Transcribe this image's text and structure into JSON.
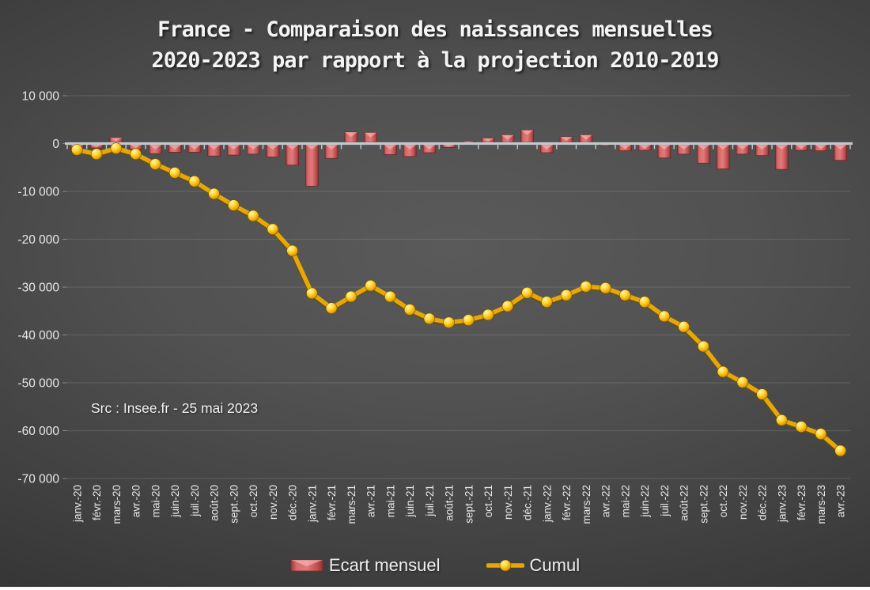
{
  "title": {
    "line1": "France - Comparaison des naissances mensuelles",
    "line2": "2020-2023 par rapport à la projection 2010-2019"
  },
  "source_note": "Src : Insee.fr - 25 mai 2023",
  "legend": {
    "ecart_label": "Ecart mensuel",
    "cumul_label": "Cumul"
  },
  "colors": {
    "bar_main": "#d96868",
    "bar_dark": "#993838",
    "bar_light": "#efa0a0",
    "line_gold": "#e7a807",
    "marker_gold": "#ffd21e",
    "axis_line": "#c3c9ce",
    "grid_line": "rgba(255,255,255,0.11)",
    "tick_text": "#e9e9e9",
    "background_center": "#5a5a5a",
    "background_edge": "#282828"
  },
  "chart_data": {
    "type": "bar",
    "subtype": "combo-bar-line",
    "title": "France - Comparaison des naissances mensuelles 2020-2023 par rapport à la projection 2010-2019",
    "categories": [
      "janv.-20",
      "févr.-20",
      "mars-20",
      "avr.-20",
      "mai-20",
      "juin-20",
      "juil.-20",
      "août-20",
      "sept.-20",
      "oct.-20",
      "nov.-20",
      "déc.-20",
      "janv.-21",
      "févr.-21",
      "mars-21",
      "avr.-21",
      "mai-21",
      "juin-21",
      "juil.-21",
      "août-21",
      "sept.-21",
      "oct.-21",
      "nov.-21",
      "déc.-21",
      "janv.-22",
      "févr.-22",
      "mars-22",
      "avr.-22",
      "mai-22",
      "juin-22",
      "juil.-22",
      "août-22",
      "sept.-22",
      "oct.-22",
      "nov.-22",
      "déc.-22",
      "janv.-23",
      "févr.-23",
      "mars-23",
      "avr.-23"
    ],
    "series": [
      {
        "name": "Ecart mensuel",
        "type": "bar",
        "color": "#d96868",
        "values": [
          -1300,
          -900,
          1200,
          -1200,
          -2100,
          -1800,
          -1800,
          -2600,
          -2400,
          -2200,
          -2800,
          -4500,
          -8900,
          -3100,
          2400,
          2300,
          -2300,
          -2700,
          -1900,
          -800,
          500,
          1100,
          1800,
          2800,
          -1900,
          1400,
          1800,
          -300,
          -1500,
          -1400,
          -3000,
          -2200,
          -4100,
          -5300,
          -2200,
          -2500,
          -5400,
          -1400,
          -1500,
          -3500
        ]
      },
      {
        "name": "Cumul",
        "type": "line",
        "color": "#e7a807",
        "values": [
          -1300,
          -2200,
          -1000,
          -2200,
          -4300,
          -6100,
          -7900,
          -10500,
          -12900,
          -15100,
          -17900,
          -22400,
          -31300,
          -34400,
          -32000,
          -29700,
          -32000,
          -34700,
          -36600,
          -37400,
          -36900,
          -35800,
          -34000,
          -31200,
          -33100,
          -31700,
          -29900,
          -30200,
          -31700,
          -33100,
          -36100,
          -38300,
          -42400,
          -47700,
          -49900,
          -52400,
          -57800,
          -59200,
          -60700,
          -64200
        ]
      }
    ],
    "xlabel": "",
    "ylabel": "",
    "ylim": [
      -70000,
      10000
    ],
    "ytick_step": 10000,
    "grid": true,
    "legend_position": "bottom"
  }
}
